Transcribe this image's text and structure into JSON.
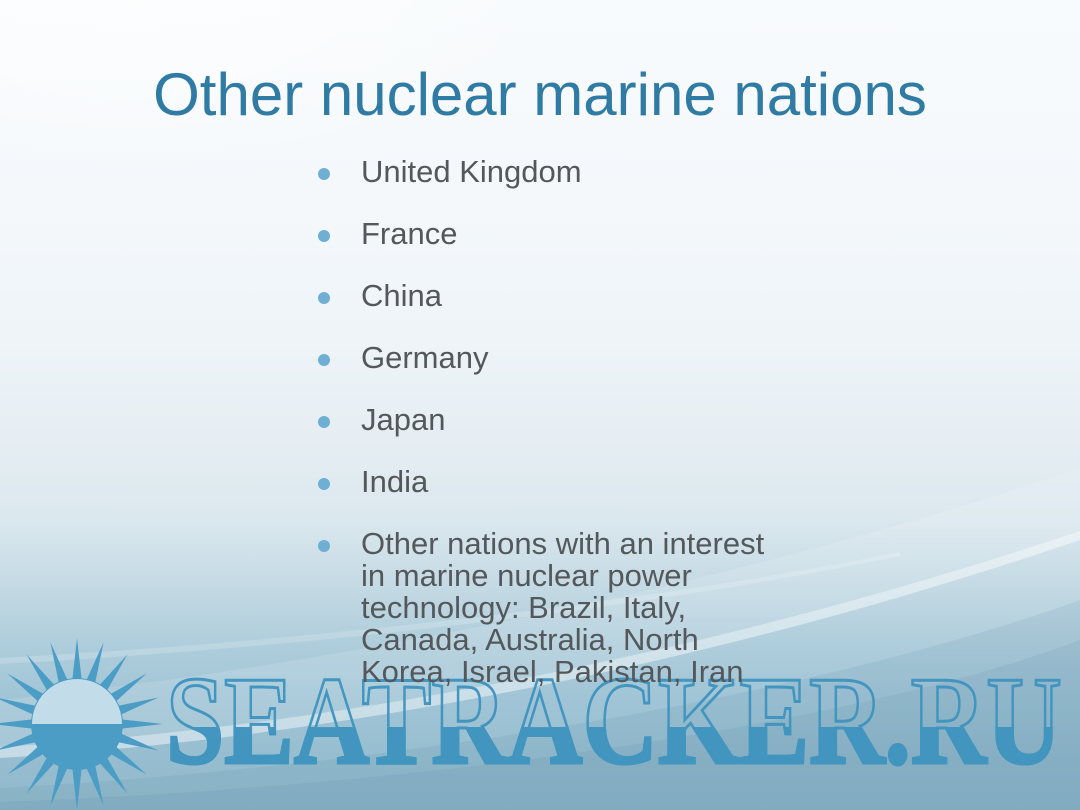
{
  "slide": {
    "title": "Other nuclear marine nations",
    "bullets": [
      "United Kingdom",
      "France",
      "China",
      "Germany",
      "Japan",
      "India",
      "Other nations with an interest in marine nuclear power technology: Brazil, Italy, Canada, Australia, North Korea, Israel, Pakistan, Iran"
    ]
  },
  "watermark": {
    "text": "SEATRACKER.RU",
    "icon": "sun-logo"
  },
  "colors": {
    "title_text": "#2f7ba4",
    "body_text": "#54585b",
    "bullet_dot": "#6fafd4",
    "watermark_blue": "#3f94bf",
    "sun_blue": "#4c9dc5",
    "sun_top_half": "#c3dcea",
    "background_top": "#f8fbfd",
    "background_bottom": "#90b9cb"
  }
}
